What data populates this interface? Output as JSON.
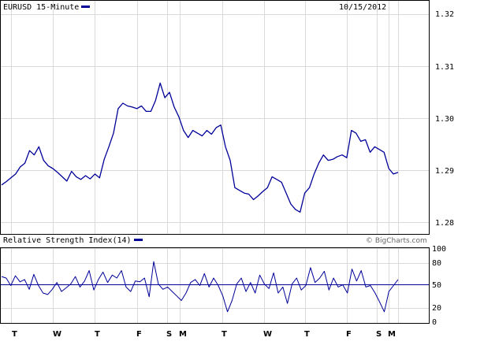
{
  "chart_data": [
    {
      "type": "line",
      "title": "EURUSD 15-Minute",
      "date_label": "10/15/2012",
      "x_labels": [
        "T",
        "W",
        "T",
        "F",
        "S",
        "M",
        "T",
        "W",
        "T",
        "F",
        "S",
        "M"
      ],
      "y_ticks": [
        "1.32",
        "1.31",
        "1.30",
        "1.29",
        "1.28"
      ],
      "y_tick_values": [
        1.32,
        1.31,
        1.3,
        1.29,
        1.28
      ],
      "ylim": [
        1.2795,
        1.3223
      ],
      "grid": true,
      "series_color": "#000099",
      "series": [
        {
          "name": "EURUSD 15-Minute",
          "values": [
            1.2885,
            1.2891,
            1.2898,
            1.2905,
            1.2918,
            1.2925,
            1.2948,
            1.294,
            1.2955,
            1.293,
            1.292,
            1.2915,
            1.2908,
            1.29,
            1.2892,
            1.291,
            1.29,
            1.2895,
            1.2902,
            1.2896,
            1.2905,
            1.2898,
            1.2932,
            1.2955,
            1.298,
            1.3025,
            1.3035,
            1.303,
            1.3028,
            1.3025,
            1.303,
            1.302,
            1.302,
            1.304,
            1.3072,
            1.3045,
            1.3055,
            1.3028,
            1.301,
            1.2985,
            1.2972,
            1.2985,
            1.298,
            1.2975,
            1.2985,
            1.2978,
            1.299,
            1.2995,
            1.2955,
            1.293,
            1.288,
            1.2875,
            1.287,
            1.2868,
            1.2858,
            1.2865,
            1.2873,
            1.288,
            1.29,
            1.2895,
            1.289,
            1.287,
            1.285,
            1.284,
            1.2835,
            1.287,
            1.288,
            1.2905,
            1.2925,
            1.294,
            1.293,
            1.2932,
            1.2937,
            1.294,
            1.2935,
            1.2985,
            1.298,
            1.2965,
            1.2968,
            1.2945,
            1.2955,
            1.295,
            1.2945,
            1.2915,
            1.2905,
            1.2908
          ]
        }
      ]
    },
    {
      "type": "line",
      "title": "Relative Strength Index(14)",
      "credit": "© BigCharts.com",
      "y_ticks": [
        "100",
        "80",
        "50",
        "20",
        "0"
      ],
      "y_tick_values": [
        100,
        80,
        50,
        20,
        0
      ],
      "ylim": [
        0,
        100
      ],
      "reference_line": 50,
      "series_color": "#000099",
      "series": [
        {
          "name": "Relative Strength Index(14)",
          "values": [
            62,
            60,
            50,
            63,
            55,
            58,
            45,
            65,
            50,
            40,
            38,
            45,
            54,
            42,
            47,
            52,
            62,
            48,
            56,
            70,
            44,
            58,
            68,
            54,
            64,
            60,
            70,
            48,
            42,
            56,
            55,
            60,
            35,
            82,
            52,
            45,
            48,
            42,
            36,
            30,
            40,
            54,
            58,
            50,
            66,
            48,
            60,
            50,
            36,
            15,
            30,
            52,
            60,
            42,
            54,
            40,
            64,
            52,
            46,
            67,
            40,
            48,
            26,
            52,
            60,
            44,
            50,
            74,
            54,
            60,
            69,
            44,
            60,
            48,
            51,
            40,
            72,
            56,
            70,
            48,
            50,
            40,
            28,
            15,
            42,
            50,
            58
          ]
        }
      ]
    }
  ]
}
